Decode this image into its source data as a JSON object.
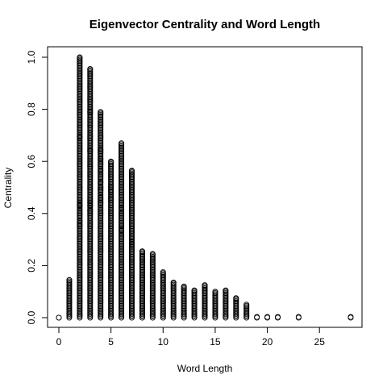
{
  "chart_data": {
    "type": "scatter",
    "title": "Eigenvector Centrality and Word Length",
    "xlabel": "Word Length",
    "ylabel": "Centrality",
    "xlim": [
      0,
      28
    ],
    "ylim": [
      0,
      1.0
    ],
    "x_ticks": [
      "0",
      "5",
      "10",
      "15",
      "20",
      "25"
    ],
    "y_ticks": [
      "0.0",
      "0.2",
      "0.4",
      "0.6",
      "0.8",
      "1.0"
    ],
    "grid": false,
    "marker": "open-circle",
    "max_by_length": [
      {
        "x": 0,
        "y": 0.0
      },
      {
        "x": 1,
        "y": 0.145
      },
      {
        "x": 2,
        "y": 1.0
      },
      {
        "x": 3,
        "y": 0.955
      },
      {
        "x": 4,
        "y": 0.79
      },
      {
        "x": 5,
        "y": 0.6
      },
      {
        "x": 6,
        "y": 0.67
      },
      {
        "x": 7,
        "y": 0.565
      },
      {
        "x": 8,
        "y": 0.255
      },
      {
        "x": 9,
        "y": 0.245
      },
      {
        "x": 10,
        "y": 0.175
      },
      {
        "x": 11,
        "y": 0.135
      },
      {
        "x": 12,
        "y": 0.12
      },
      {
        "x": 13,
        "y": 0.105
      },
      {
        "x": 14,
        "y": 0.125
      },
      {
        "x": 15,
        "y": 0.1
      },
      {
        "x": 16,
        "y": 0.105
      },
      {
        "x": 17,
        "y": 0.075
      },
      {
        "x": 18,
        "y": 0.05
      },
      {
        "x": 19,
        "y": 0.003
      },
      {
        "x": 20,
        "y": 0.003
      },
      {
        "x": 21,
        "y": 0.003
      },
      {
        "x": 23,
        "y": 0.003
      },
      {
        "x": 28,
        "y": 0.003
      }
    ],
    "outliers": [
      {
        "x": 2,
        "y": 0.695
      },
      {
        "x": 2,
        "y": 0.435
      },
      {
        "x": 2,
        "y": 0.43
      },
      {
        "x": 2,
        "y": 0.37
      },
      {
        "x": 2,
        "y": 0.355
      },
      {
        "x": 3,
        "y": 0.79
      },
      {
        "x": 3,
        "y": 0.64
      },
      {
        "x": 3,
        "y": 0.58
      },
      {
        "x": 3,
        "y": 0.44
      },
      {
        "x": 3,
        "y": 0.43
      },
      {
        "x": 3,
        "y": 0.41
      },
      {
        "x": 4,
        "y": 0.645
      },
      {
        "x": 4,
        "y": 0.635
      },
      {
        "x": 4,
        "y": 0.61
      },
      {
        "x": 4,
        "y": 0.565
      },
      {
        "x": 4,
        "y": 0.52
      },
      {
        "x": 4,
        "y": 0.5
      },
      {
        "x": 4,
        "y": 0.49
      },
      {
        "x": 4,
        "y": 0.46
      },
      {
        "x": 4,
        "y": 0.44
      },
      {
        "x": 5,
        "y": 0.5
      },
      {
        "x": 5,
        "y": 0.485
      },
      {
        "x": 5,
        "y": 0.455
      },
      {
        "x": 6,
        "y": 0.42
      },
      {
        "x": 6,
        "y": 0.4
      },
      {
        "x": 6,
        "y": 0.335
      },
      {
        "x": 7,
        "y": 0.29
      },
      {
        "x": 7,
        "y": 0.28
      }
    ]
  }
}
